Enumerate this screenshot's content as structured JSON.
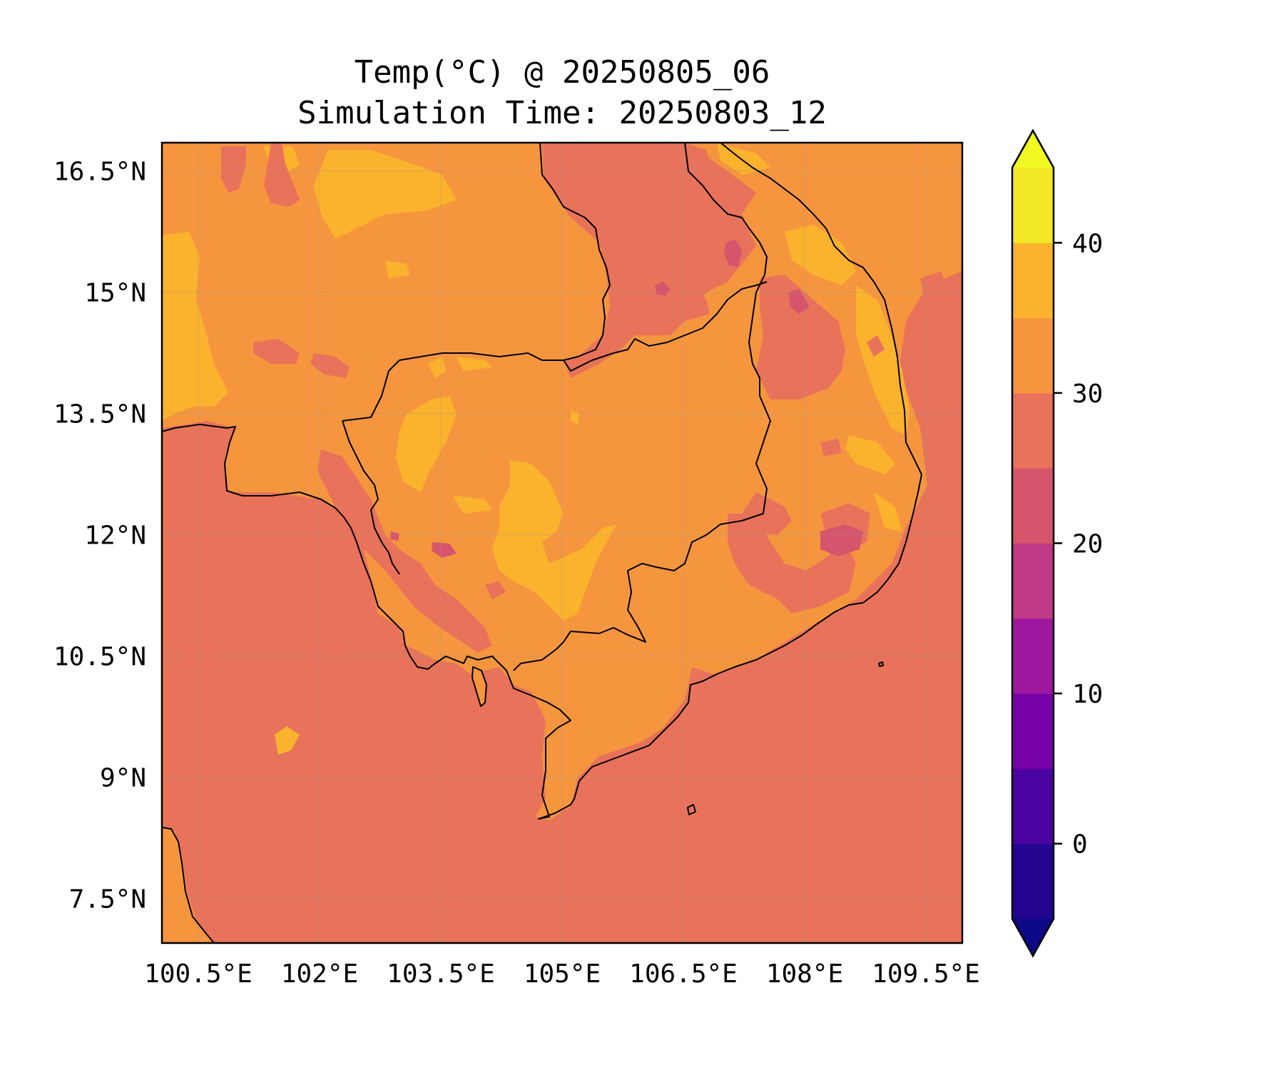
{
  "title_line1": "Temp(°C) @ 20250805_06",
  "title_line2": "Simulation Time: 20250803_12",
  "map": {
    "lon_range": [
      100.05,
      109.95
    ],
    "lat_range": [
      6.95,
      16.85
    ],
    "lon_ticks": [
      "100.5°E",
      "102°E",
      "103.5°E",
      "105°E",
      "106.5°E",
      "108°E",
      "109.5°E"
    ],
    "lon_tick_values": [
      100.5,
      102,
      103.5,
      105,
      106.5,
      108,
      109.5
    ],
    "lat_ticks": [
      "16.5°N",
      "15°N",
      "13.5°N",
      "12°N",
      "10.5°N",
      "9°N",
      "7.5°N"
    ],
    "lat_tick_values": [
      16.5,
      15,
      13.5,
      12,
      10.5,
      9,
      7.5
    ],
    "ocean_color": "#e8735a",
    "land_color": "#f5963f",
    "warm_color": "#fbb22d",
    "cool_color": "#d6556d",
    "coast_color": "#000000"
  },
  "colorbar": {
    "levels": [
      -5,
      0,
      5,
      10,
      15,
      20,
      25,
      30,
      35,
      40,
      45
    ],
    "colors": [
      "#23058f",
      "#4a02a0",
      "#7701a8",
      "#9d189e",
      "#bf3984",
      "#d6556d",
      "#e8735a",
      "#f5963f",
      "#fbb22d",
      "#f2e826"
    ],
    "under_color": "#0d0887",
    "over_color": "#f0f921",
    "extend": "both",
    "tick_values": [
      0,
      10,
      20,
      30,
      40
    ],
    "tick_labels": [
      "0",
      "10",
      "20",
      "30",
      "40"
    ]
  }
}
